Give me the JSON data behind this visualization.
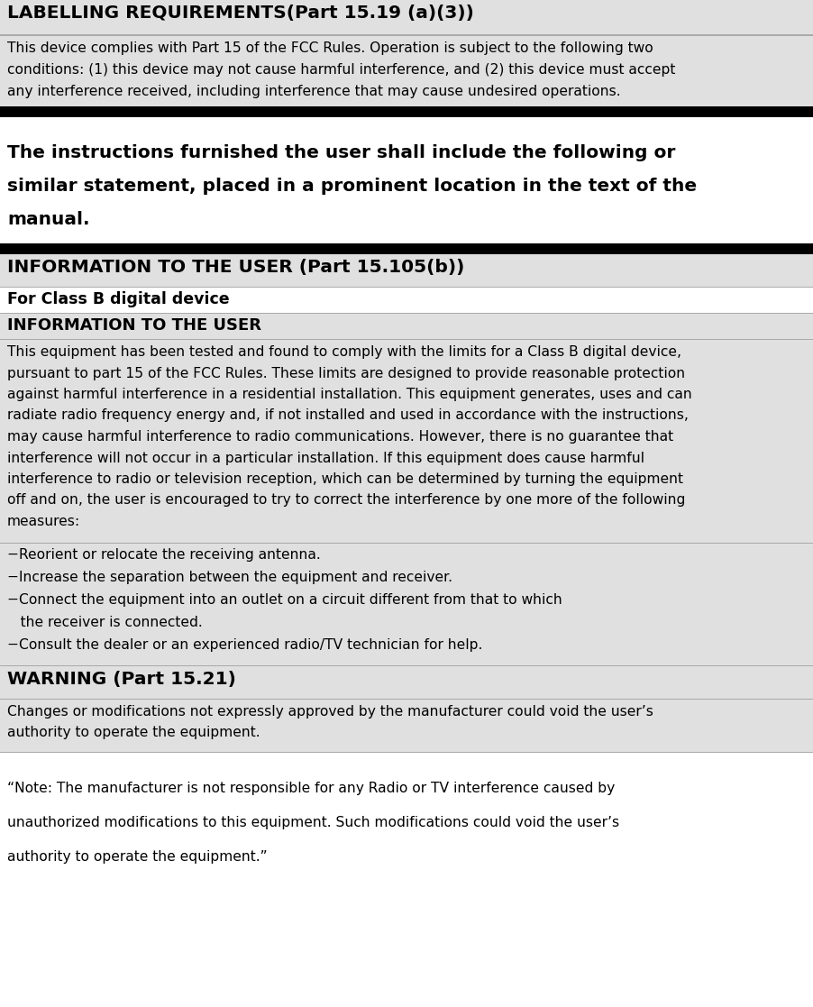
{
  "bg_color": "#ffffff",
  "gray_bg": "#e0e0e0",
  "white_bg": "#ffffff",
  "black": "#000000",
  "section1_title": "LABELLING REQUIREMENTS(Part 15.19 (a)(3))",
  "section1_body": "This device complies with Part 15 of the FCC Rules. Operation is subject to the following two conditions: (1) this device may not cause harmful interference, and (2) this device must accept any interference received, including interference that may cause undesired operations.",
  "middle_text_line1": "The instructions furnished the user shall include the following or",
  "middle_text_line2": "similar statement, placed in a prominent location in the text of the",
  "middle_text_line3": "manual.",
  "section2_title": "INFORMATION TO THE USER (Part 15.105(b))",
  "section2_sub1": "For Class B digital device",
  "section2_sub2": "INFORMATION TO THE USER",
  "section2_body_line1": "This equipment has been tested and found to comply with the limits for a Class B digital device,",
  "section2_body_line2": "pursuant to part 15 of the FCC Rules. These limits are designed to provide reasonable protection",
  "section2_body_line3": "against harmful interference in a residential installation. This equipment generates, uses and can",
  "section2_body_line4": "radiate radio frequency energy and, if not installed and used in accordance with the instructions,",
  "section2_body_line5": "may cause harmful interference to radio communications. However, there is no guarantee that",
  "section2_body_line6": "interference will not occur in a particular installation. If this equipment does cause harmful",
  "section2_body_line7": "interference to radio or television reception, which can be determined by turning the equipment",
  "section2_body_line8": "off and on, the user is encouraged to try to correct the interference by one more of the following",
  "section2_body_line9": "measures:",
  "bullet1": "−Reorient or relocate the receiving antenna.",
  "bullet2": "−Increase the separation between the equipment and receiver.",
  "bullet3a": "−Connect the equipment into an outlet on a circuit different from that to which",
  "bullet3b": "   the receiver is connected.",
  "bullet4": "−Consult the dealer or an experienced radio/TV technician for help.",
  "section3_title": "WARNING (Part 15.21)",
  "section3_body_line1": "Changes or modifications not expressly approved by the manufacturer could void the user’s",
  "section3_body_line2": "authority to operate the equipment.",
  "section4_line1": "“Note: The manufacturer is not responsible for any Radio or TV interference caused by",
  "section4_line2": "unauthorized modifications to this equipment. Such modifications could void the user’s",
  "section4_line3": "authority to operate the equipment.”"
}
